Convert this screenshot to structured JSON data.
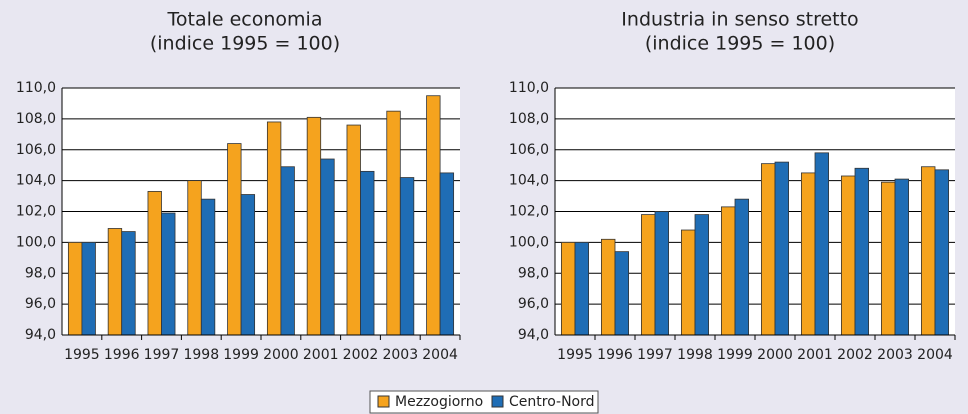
{
  "chart_data": [
    {
      "type": "bar",
      "title": "Totale economia",
      "subtitle": "(indice 1995 = 100)",
      "categories": [
        "1995",
        "1996",
        "1997",
        "1998",
        "1999",
        "2000",
        "2001",
        "2002",
        "2003",
        "2004"
      ],
      "series": [
        {
          "name": "Mezzogiorno",
          "color": "#f5a31e",
          "values": [
            100.0,
            100.9,
            103.3,
            104.0,
            106.4,
            107.8,
            108.1,
            107.6,
            108.5,
            109.5
          ]
        },
        {
          "name": "Centro-Nord",
          "color": "#1f6db5",
          "values": [
            100.0,
            100.7,
            101.9,
            102.8,
            103.1,
            104.9,
            105.4,
            104.6,
            104.2,
            104.5
          ]
        }
      ],
      "ylim": [
        94,
        110
      ],
      "yticks": [
        {
          "value": 94,
          "label": "94,0"
        },
        {
          "value": 96,
          "label": "96,0"
        },
        {
          "value": 98,
          "label": "98,0"
        },
        {
          "value": 100,
          "label": "100,0"
        },
        {
          "value": 102,
          "label": "102,0"
        },
        {
          "value": 104,
          "label": "104,0"
        },
        {
          "value": 106,
          "label": "106,0"
        },
        {
          "value": 108,
          "label": "108,0"
        },
        {
          "value": 110,
          "label": "110,0"
        }
      ],
      "grid": true
    },
    {
      "type": "bar",
      "title": "Industria in senso stretto",
      "subtitle": "(indice 1995 = 100)",
      "categories": [
        "1995",
        "1996",
        "1997",
        "1998",
        "1999",
        "2000",
        "2001",
        "2002",
        "2003",
        "2004"
      ],
      "series": [
        {
          "color": "#f5a31e",
          "values": [
            100.0,
            100.2,
            101.8,
            100.8,
            102.3,
            105.1,
            104.5,
            104.3,
            103.9,
            104.9
          ]
        },
        {
          "color": "#1f6db5",
          "values": [
            100.0,
            99.4,
            102.0,
            101.8,
            102.8,
            105.2,
            105.8,
            104.8,
            104.1,
            104.7
          ]
        }
      ],
      "ylim": [
        94,
        110
      ],
      "yticks": [
        {
          "value": 94,
          "label": "94,0"
        },
        {
          "value": 96,
          "label": "96,0"
        },
        {
          "value": 98,
          "label": "98,0"
        },
        {
          "value": 100,
          "label": "100,0"
        },
        {
          "value": 102,
          "label": "102,0"
        },
        {
          "value": 104,
          "label": "104,0"
        },
        {
          "value": 106,
          "label": "106,0"
        },
        {
          "value": 108,
          "label": "108,0"
        },
        {
          "value": 110,
          "label": "110,0"
        }
      ],
      "grid": true
    }
  ]
}
